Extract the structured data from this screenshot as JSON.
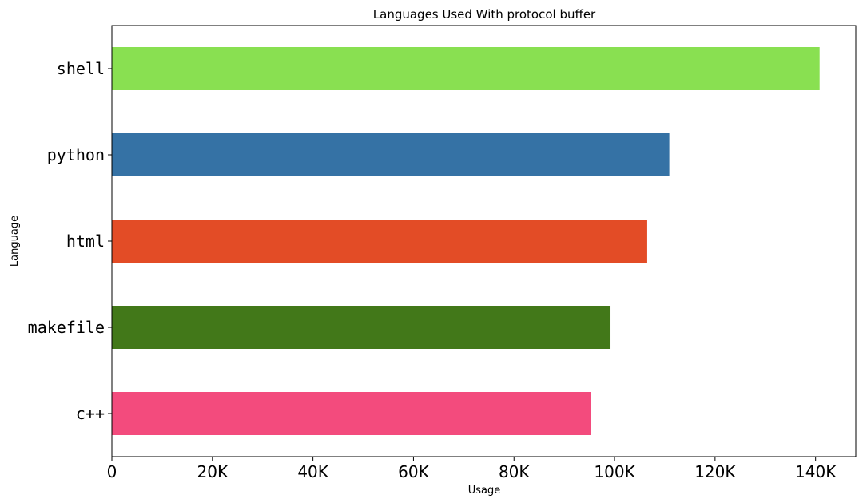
{
  "chart_data": {
    "type": "bar",
    "orientation": "horizontal",
    "title": "Languages Used With protocol buffer",
    "xlabel": "Usage",
    "ylabel": "Language",
    "categories": [
      "c++",
      "makefile",
      "html",
      "python",
      "shell"
    ],
    "values": [
      95300,
      99200,
      106500,
      110900,
      140800
    ],
    "colors": [
      "#f34b7d",
      "#427819",
      "#e34c26",
      "#3572a5",
      "#89e051"
    ],
    "xlim": [
      0,
      148000
    ],
    "xticks": [
      0,
      20000,
      40000,
      60000,
      80000,
      100000,
      120000,
      140000
    ],
    "xtick_labels": [
      "0",
      "20K",
      "40K",
      "60K",
      "80K",
      "100K",
      "120K",
      "140K"
    ],
    "grid": false,
    "legend": "none"
  }
}
